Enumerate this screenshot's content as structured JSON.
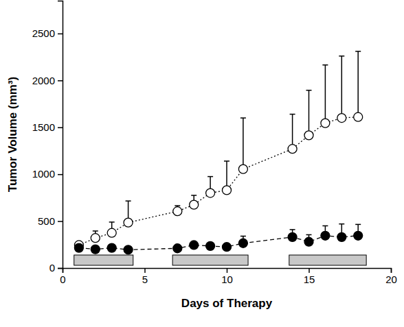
{
  "chart_data": {
    "type": "line",
    "x_label": "Days of Therapy",
    "y_label": "Tumor Volume (mm³)",
    "x": [
      1,
      2,
      3,
      4,
      7,
      8,
      9,
      10,
      11,
      14,
      15,
      16,
      17,
      18
    ],
    "series": [
      {
        "color": "#000000",
        "marker": "open-circle",
        "line_style": "dotted",
        "values": [
          245,
          320,
          375,
          485,
          605,
          675,
          800,
          830,
          1055,
          1270,
          1415,
          1545,
          1600,
          1610
        ],
        "errors": [
          25,
          75,
          115,
          230,
          60,
          100,
          175,
          310,
          545,
          370,
          480,
          620,
          660,
          700
        ]
      },
      {
        "color": "#000000",
        "marker": "filled-circle",
        "line_style": "dashed",
        "values": [
          215,
          200,
          215,
          195,
          210,
          245,
          235,
          225,
          265,
          330,
          280,
          345,
          330,
          345
        ],
        "errors": [
          20,
          15,
          15,
          15,
          15,
          20,
          20,
          25,
          75,
          80,
          75,
          105,
          140,
          120
        ]
      }
    ],
    "treatment_periods": [
      [
        0.7,
        4.3
      ],
      [
        6.7,
        11.3
      ],
      [
        13.8,
        18.5
      ]
    ],
    "xlim": [
      0,
      20
    ],
    "xticks": [
      0,
      5,
      10,
      15,
      20
    ],
    "ylim": [
      0,
      2850
    ],
    "yticks": [
      0,
      500,
      1000,
      1500,
      2000,
      2500
    ],
    "grid": false
  }
}
